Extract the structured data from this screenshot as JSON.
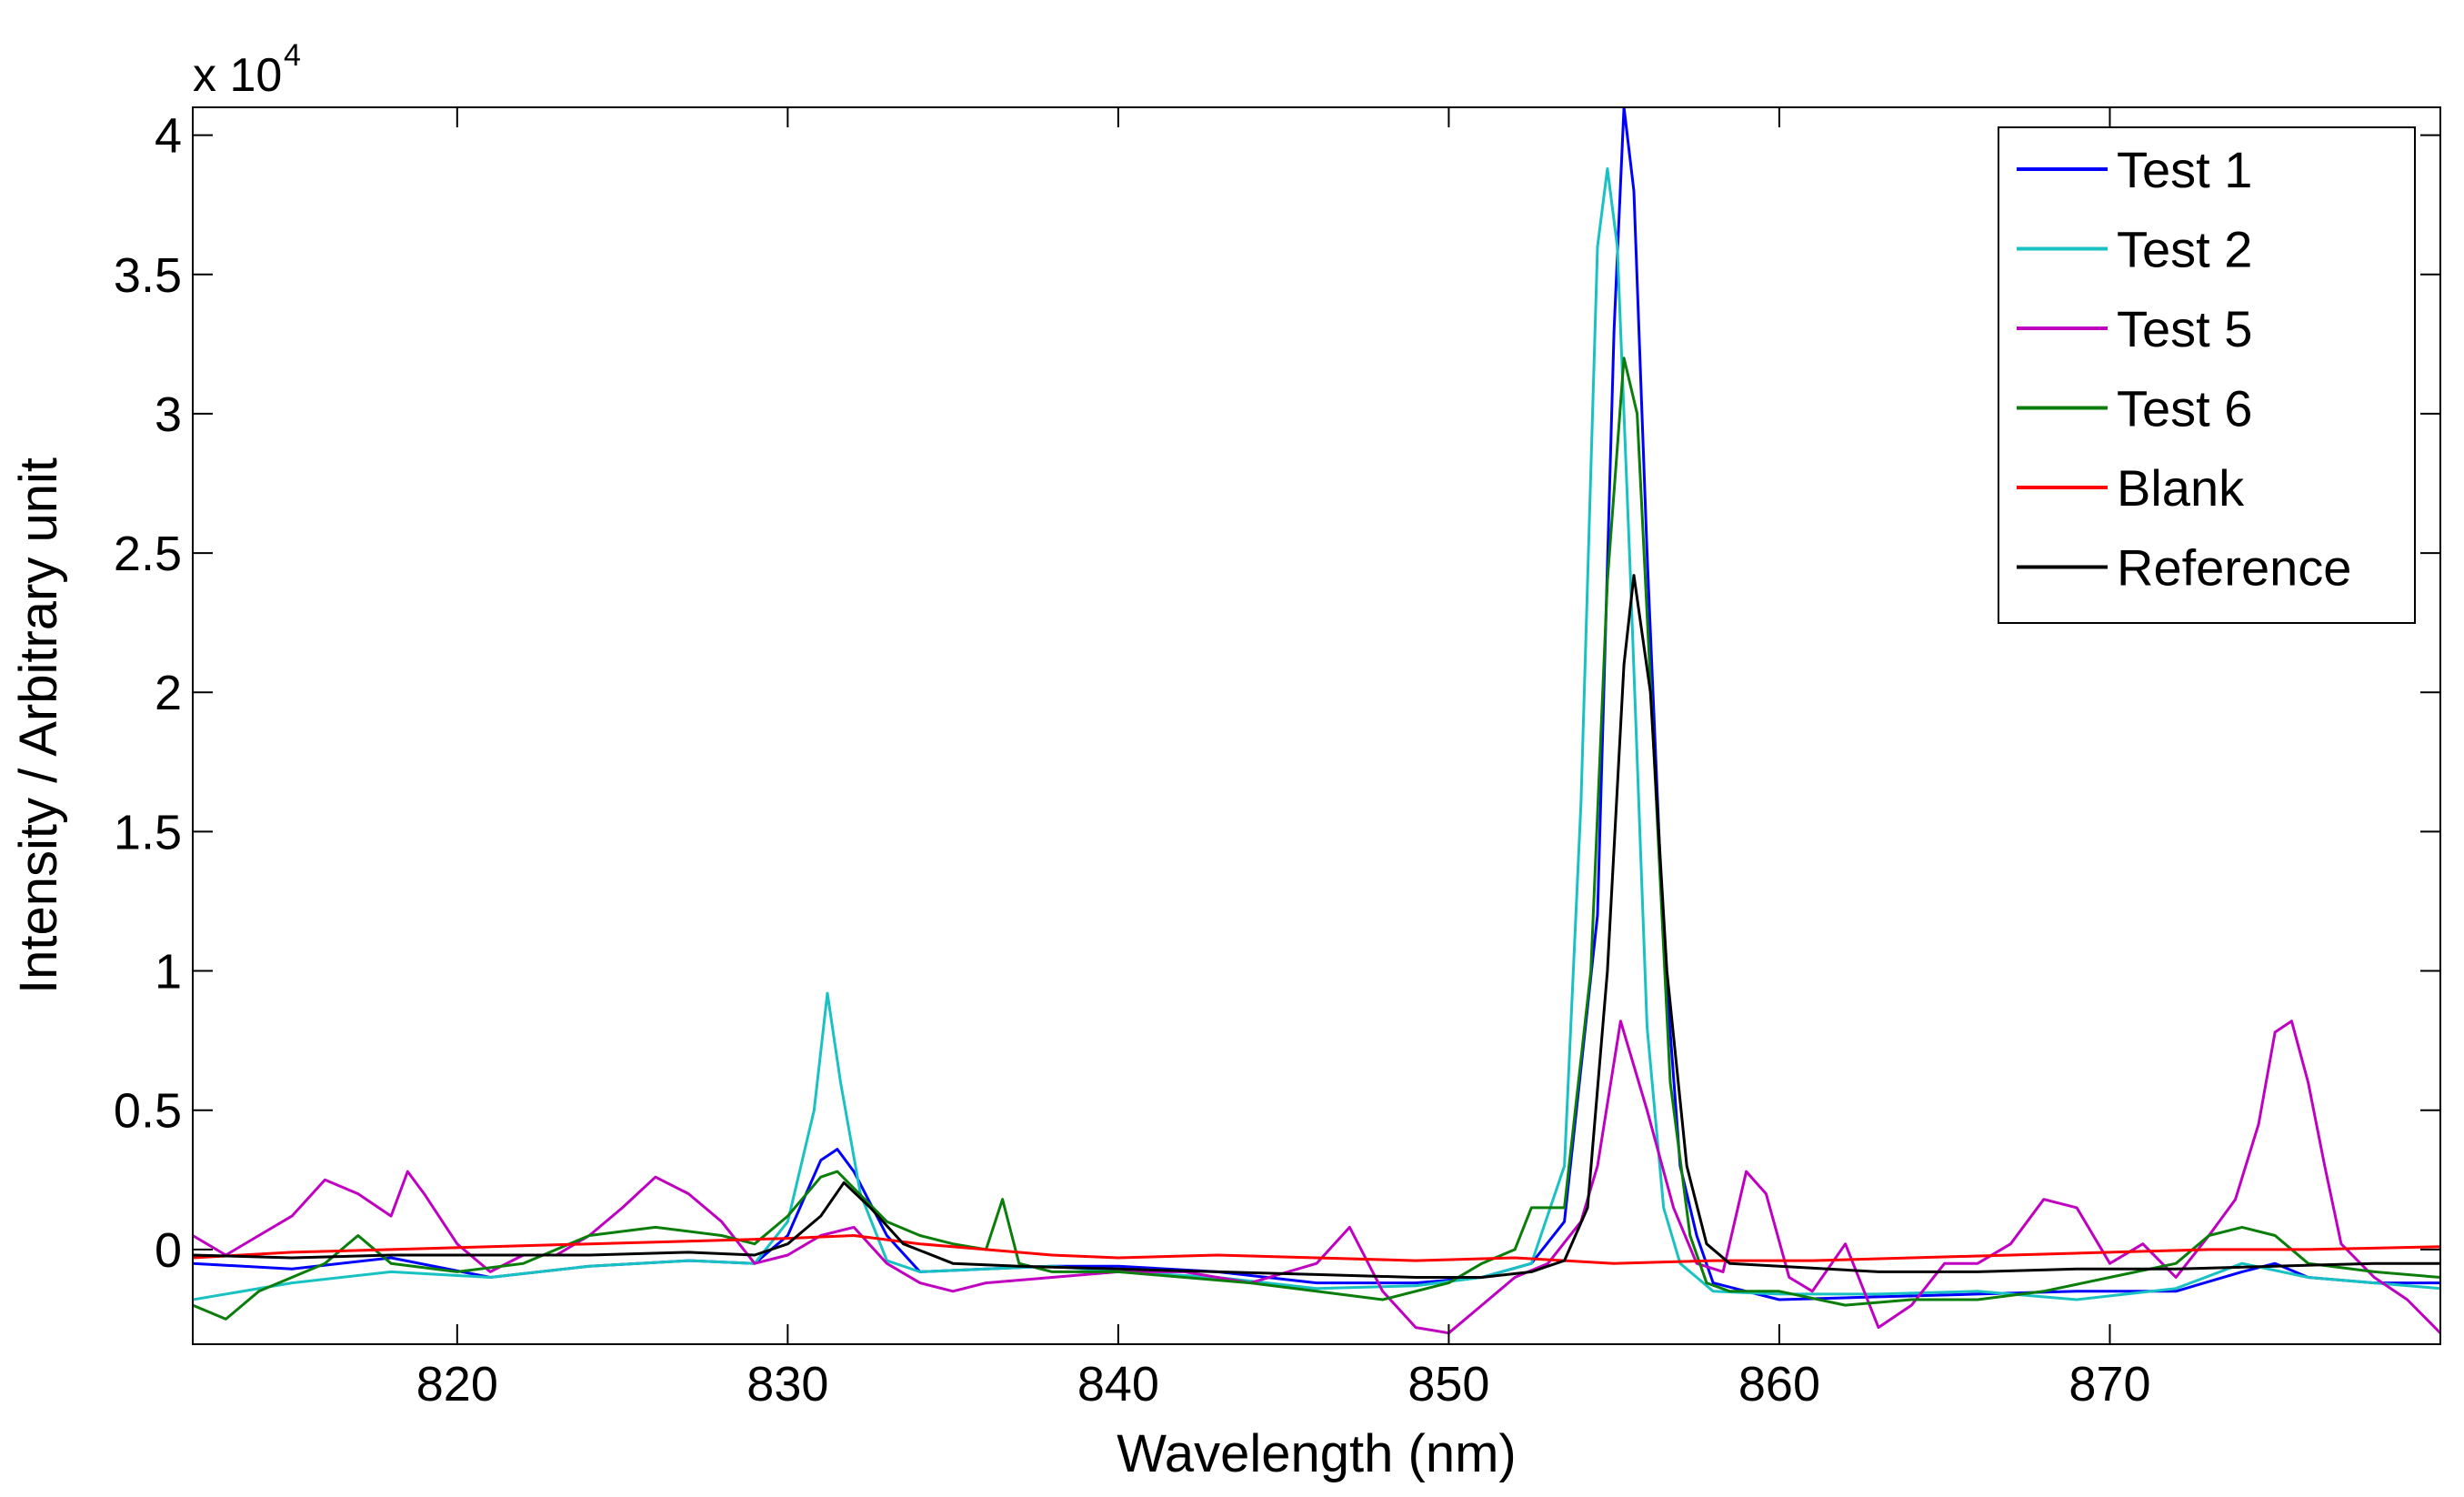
{
  "chart_data": {
    "type": "line",
    "title": "",
    "xlabel": "Wavelength (nm)",
    "ylabel": "Intensity / Arbitrary unit",
    "y_multiplier_label": "x 10",
    "y_multiplier_exponent": "4",
    "xlim": [
      812,
      880
    ],
    "ylim": [
      -0.34,
      4.1
    ],
    "x_ticks": [
      820,
      830,
      840,
      850,
      860,
      870
    ],
    "y_ticks": [
      0,
      0.5,
      1,
      1.5,
      2,
      2.5,
      3,
      3.5,
      4
    ],
    "y_tick_labels": [
      "0",
      "0.5",
      "1",
      "1.5",
      "2",
      "2.5",
      "3",
      "3.5",
      "4"
    ],
    "grid": false,
    "legend_position": "top-right",
    "series": [
      {
        "name": "Test 1",
        "color": "#0000ff",
        "x": [
          812,
          815,
          818,
          821,
          824,
          827,
          829,
          830,
          831,
          831.5,
          832,
          833,
          834,
          836,
          838,
          840,
          843,
          846,
          849,
          851,
          852.5,
          853.5,
          854.5,
          855,
          855.3,
          855.6,
          856,
          856.5,
          857,
          857.5,
          858,
          860,
          863,
          866,
          869,
          872,
          874,
          875,
          876,
          878,
          880
        ],
        "y": [
          -0.05,
          -0.07,
          -0.03,
          -0.1,
          -0.06,
          -0.04,
          -0.05,
          0.05,
          0.32,
          0.36,
          0.28,
          0.05,
          -0.08,
          -0.07,
          -0.06,
          -0.06,
          -0.08,
          -0.12,
          -0.12,
          -0.1,
          -0.05,
          0.1,
          1.2,
          3.3,
          4.1,
          3.8,
          2.5,
          1.1,
          0.3,
          0.05,
          -0.12,
          -0.18,
          -0.17,
          -0.16,
          -0.15,
          -0.15,
          -0.08,
          -0.05,
          -0.1,
          -0.12,
          -0.12
        ]
      },
      {
        "name": "Test 2",
        "color": "#19c2c2",
        "x": [
          812,
          815,
          818,
          821,
          824,
          827,
          829,
          830,
          830.8,
          831.2,
          831.6,
          832.2,
          833,
          834,
          836,
          838,
          840,
          843,
          846,
          849,
          851,
          852.5,
          853.5,
          854,
          854.5,
          854.8,
          855.1,
          855.5,
          856,
          856.5,
          857,
          857.5,
          858,
          860,
          863,
          866,
          869,
          872,
          874,
          876,
          878,
          880
        ],
        "y": [
          -0.18,
          -0.12,
          -0.08,
          -0.1,
          -0.06,
          -0.04,
          -0.05,
          0.1,
          0.5,
          0.92,
          0.6,
          0.2,
          -0.04,
          -0.08,
          -0.07,
          -0.06,
          -0.08,
          -0.1,
          -0.14,
          -0.13,
          -0.1,
          -0.05,
          0.3,
          1.6,
          3.6,
          3.88,
          3.6,
          2.4,
          0.8,
          0.15,
          -0.05,
          -0.1,
          -0.15,
          -0.16,
          -0.16,
          -0.15,
          -0.18,
          -0.14,
          -0.05,
          -0.1,
          -0.12,
          -0.14
        ]
      },
      {
        "name": "Test 5",
        "color": "#c000c0",
        "x": [
          812,
          813,
          814,
          815,
          816,
          817,
          818,
          818.5,
          819,
          820,
          821,
          822,
          823,
          824,
          825,
          826,
          827,
          828,
          829,
          830,
          831,
          832,
          833,
          834,
          835,
          836,
          838,
          840,
          842,
          844,
          846,
          847,
          848,
          849,
          850,
          851,
          852,
          853,
          854,
          854.5,
          855.2,
          856,
          856.8,
          857.5,
          858.3,
          859,
          859.6,
          860.3,
          861,
          862,
          863,
          864,
          865,
          866,
          867,
          868,
          869,
          870,
          871,
          872,
          873,
          873.8,
          874.5,
          875,
          875.5,
          876,
          876.5,
          877,
          878,
          879,
          880
        ],
        "y": [
          0.05,
          -0.02,
          0.05,
          0.12,
          0.25,
          0.2,
          0.12,
          0.28,
          0.2,
          0.02,
          -0.08,
          -0.02,
          -0.02,
          0.05,
          0.15,
          0.26,
          0.2,
          0.1,
          -0.05,
          -0.02,
          0.05,
          0.08,
          -0.05,
          -0.12,
          -0.15,
          -0.12,
          -0.1,
          -0.08,
          -0.08,
          -0.12,
          -0.05,
          0.08,
          -0.15,
          -0.28,
          -0.3,
          -0.2,
          -0.1,
          -0.05,
          0.1,
          0.3,
          0.82,
          0.5,
          0.15,
          -0.05,
          -0.08,
          0.28,
          0.2,
          -0.1,
          -0.15,
          0.02,
          -0.28,
          -0.2,
          -0.05,
          -0.05,
          0.02,
          0.18,
          0.15,
          -0.05,
          0.02,
          -0.1,
          0.05,
          0.18,
          0.45,
          0.78,
          0.82,
          0.6,
          0.3,
          0.02,
          -0.1,
          -0.18,
          -0.3
        ]
      },
      {
        "name": "Test 6",
        "color": "#0a7d0a",
        "x": [
          812,
          813,
          814,
          815,
          816,
          817,
          818,
          820,
          822,
          824,
          826,
          828,
          829,
          830,
          831,
          831.5,
          832,
          833,
          834,
          835,
          836,
          836.5,
          837,
          838,
          840,
          842,
          844,
          846,
          848,
          850,
          851,
          852,
          852.5,
          853.5,
          854.3,
          854.8,
          855.3,
          855.7,
          856.2,
          856.7,
          857.3,
          857.8,
          858.5,
          860,
          862,
          864,
          866,
          868,
          870,
          872,
          873,
          874,
          875,
          876,
          878,
          880
        ],
        "y": [
          -0.2,
          -0.25,
          -0.15,
          -0.1,
          -0.05,
          0.05,
          -0.05,
          -0.08,
          -0.05,
          0.05,
          0.08,
          0.05,
          0.02,
          0.12,
          0.26,
          0.28,
          0.22,
          0.1,
          0.05,
          0.02,
          0.0,
          0.18,
          -0.05,
          -0.08,
          -0.08,
          -0.1,
          -0.12,
          -0.15,
          -0.18,
          -0.12,
          -0.05,
          0.0,
          0.15,
          0.15,
          1.0,
          2.4,
          3.2,
          3.0,
          1.8,
          0.6,
          0.05,
          -0.12,
          -0.15,
          -0.15,
          -0.2,
          -0.18,
          -0.18,
          -0.15,
          -0.1,
          -0.05,
          0.05,
          0.08,
          0.05,
          -0.05,
          -0.08,
          -0.1
        ]
      },
      {
        "name": "Blank",
        "color": "#ff0000",
        "x": [
          812,
          815,
          818,
          821,
          824,
          827,
          830,
          832,
          834,
          836,
          838,
          840,
          843,
          846,
          849,
          852,
          855,
          858,
          861,
          864,
          867,
          870,
          873,
          876,
          880
        ],
        "y": [
          -0.03,
          -0.01,
          0.0,
          0.01,
          0.02,
          0.03,
          0.04,
          0.05,
          0.02,
          0.0,
          -0.02,
          -0.03,
          -0.02,
          -0.03,
          -0.04,
          -0.03,
          -0.05,
          -0.04,
          -0.04,
          -0.03,
          -0.02,
          -0.01,
          0.0,
          0.0,
          0.01
        ]
      },
      {
        "name": "Reference",
        "color": "#000000",
        "x": [
          812,
          815,
          818,
          821,
          824,
          827,
          829,
          830,
          831,
          831.7,
          832.5,
          833.5,
          835,
          837,
          840,
          843,
          846,
          849,
          851,
          852.5,
          853.5,
          854.2,
          854.8,
          855.3,
          855.6,
          856.1,
          856.6,
          857.2,
          857.8,
          858.5,
          860,
          863,
          866,
          869,
          872,
          875,
          878,
          880
        ],
        "y": [
          -0.02,
          -0.03,
          -0.02,
          -0.02,
          -0.02,
          -0.01,
          -0.02,
          0.02,
          0.12,
          0.24,
          0.15,
          0.02,
          -0.05,
          -0.06,
          -0.07,
          -0.08,
          -0.09,
          -0.1,
          -0.1,
          -0.08,
          -0.04,
          0.15,
          1.0,
          2.1,
          2.42,
          2.0,
          1.0,
          0.3,
          0.02,
          -0.05,
          -0.06,
          -0.08,
          -0.08,
          -0.07,
          -0.07,
          -0.06,
          -0.05,
          -0.05
        ]
      }
    ]
  }
}
